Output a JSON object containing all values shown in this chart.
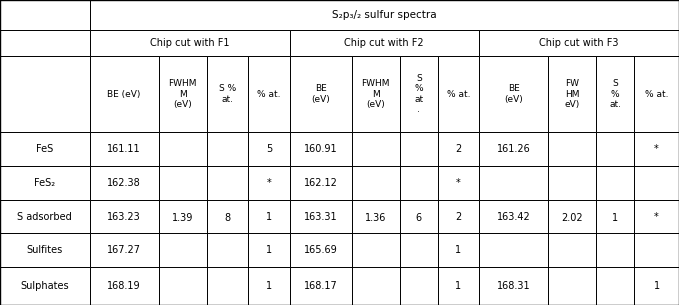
{
  "title": "S₂p₃/₂ sulfur spectra",
  "row_labels": [
    "FeS",
    "FeS₂",
    "S adsorbed",
    "Sulfites",
    "Sulphates"
  ],
  "data_rows": [
    [
      "161.11",
      "5",
      "160.91",
      "2",
      "161.26",
      "*"
    ],
    [
      "162.38",
      "*",
      "162.12",
      "*",
      "",
      ""
    ],
    [
      "163.23",
      "1",
      "163.31",
      "2",
      "163.42",
      "*"
    ],
    [
      "167.27",
      "1",
      "165.69",
      "1",
      "",
      ""
    ],
    [
      "168.19",
      "1",
      "168.17",
      "1",
      "168.31",
      "1"
    ]
  ],
  "merged_f1_fwhm": "1.39",
  "merged_f1_s": "8",
  "merged_f2_fwhm": "1.36",
  "merged_f2_s": "6",
  "merged_f3_fwhm": "2.02",
  "merged_f3_s": "1",
  "bg_color": "#ffffff",
  "line_color": "#000000",
  "text_color": "#000000",
  "font_size": 7.0
}
